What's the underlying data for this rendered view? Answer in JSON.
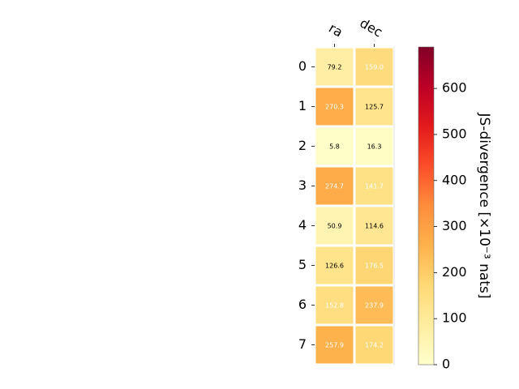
{
  "chart_data": {
    "type": "heatmap",
    "columns": [
      "ra",
      "dec"
    ],
    "rows": [
      "0",
      "1",
      "2",
      "3",
      "4",
      "5",
      "6",
      "7"
    ],
    "values": [
      [
        79.2,
        159.0
      ],
      [
        270.3,
        125.7
      ],
      [
        5.8,
        16.3
      ],
      [
        274.7,
        141.7
      ],
      [
        50.9,
        114.6
      ],
      [
        126.6,
        176.5
      ],
      [
        152.8,
        237.9
      ],
      [
        257.9,
        174.2
      ]
    ],
    "cell_labels": [
      [
        "79.2",
        "159.0"
      ],
      [
        "270.3",
        "125.7"
      ],
      [
        "5.8",
        "16.3"
      ],
      [
        "274.7",
        "141.7"
      ],
      [
        "50.9",
        "114.6"
      ],
      [
        "126.6",
        "176.5"
      ],
      [
        "152.8",
        "237.9"
      ],
      [
        "257.9",
        "174.2"
      ]
    ],
    "colorbar": {
      "label": "JS-divergence [×10⁻³ nats]",
      "range": [
        0,
        690
      ],
      "ticks": [
        "0",
        "100",
        "200",
        "300",
        "400",
        "500",
        "600"
      ],
      "colormap": "YlOrRd"
    }
  }
}
